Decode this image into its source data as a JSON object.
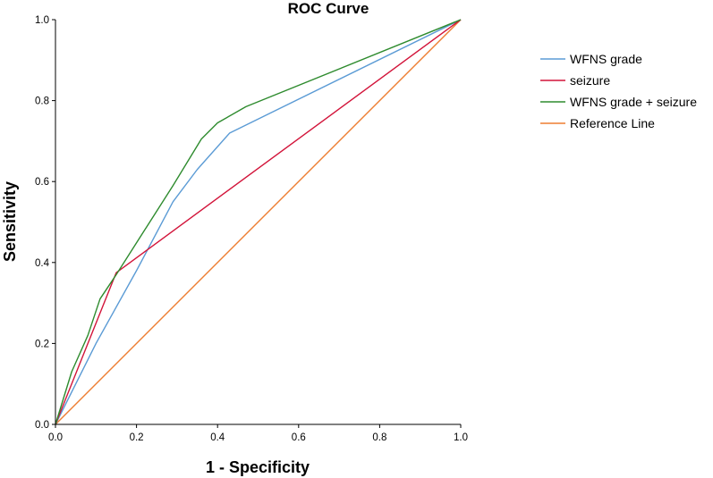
{
  "chart_data": {
    "type": "line",
    "title": "ROC Curve",
    "xlabel": "1 - Specificity",
    "ylabel": "Sensitivity",
    "xlim": [
      0,
      1
    ],
    "ylim": [
      0,
      1
    ],
    "x_ticks": [
      "0.0",
      "0.2",
      "0.4",
      "0.6",
      "0.8",
      "1.0"
    ],
    "y_ticks": [
      "0.0",
      "0.2",
      "0.4",
      "0.6",
      "0.8",
      "1.0"
    ],
    "grid": false,
    "legend_position": "top-right",
    "series": [
      {
        "name": "WFNS grade",
        "color": "#5b9bd5",
        "x": [
          0,
          0.1,
          0.2,
          0.29,
          0.35,
          0.43,
          1.0
        ],
        "y": [
          0,
          0.2,
          0.38,
          0.55,
          0.63,
          0.72,
          1.0
        ]
      },
      {
        "name": "seizure",
        "color": "#d2143a",
        "x": [
          0,
          0.08,
          0.15,
          1.0
        ],
        "y": [
          0,
          0.2,
          0.375,
          1.0
        ]
      },
      {
        "name": "WFNS grade + seizure",
        "color": "#2e8b2e",
        "x": [
          0,
          0.04,
          0.08,
          0.11,
          0.15,
          0.22,
          0.29,
          0.36,
          0.4,
          0.47,
          1.0
        ],
        "y": [
          0,
          0.13,
          0.22,
          0.31,
          0.37,
          0.48,
          0.59,
          0.705,
          0.745,
          0.785,
          1.0
        ]
      },
      {
        "name": "Reference Line",
        "color": "#ed7d31",
        "x": [
          0,
          1.0
        ],
        "y": [
          0,
          1.0
        ]
      }
    ]
  }
}
